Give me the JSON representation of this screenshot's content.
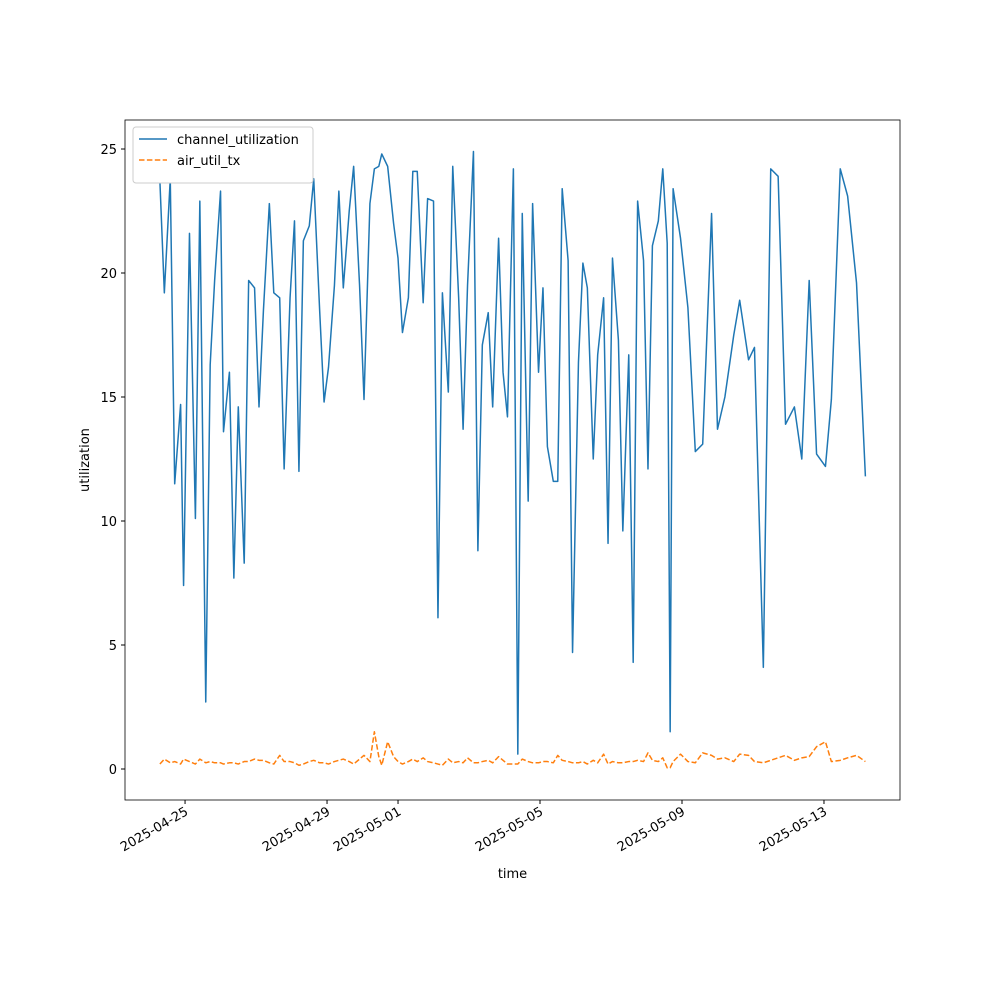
{
  "chart_data": {
    "type": "line",
    "x_label": "time",
    "y_label": "utilization",
    "x": [
      "2025-04-24T07:00",
      "2025-04-24T10:00",
      "2025-04-24T14:00",
      "2025-04-24T17:00",
      "2025-04-24T21:00",
      "2025-04-24T23:00",
      "2025-04-25T03:00",
      "2025-04-25T07:00",
      "2025-04-25T10:00",
      "2025-04-25T14:00",
      "2025-04-25T17:00",
      "2025-04-25T20:00",
      "2025-04-26T00:00",
      "2025-04-26T02:00",
      "2025-04-26T06:00",
      "2025-04-26T09:00",
      "2025-04-26T12:00",
      "2025-04-26T16:00",
      "2025-04-26T19:00",
      "2025-04-26T23:00",
      "2025-04-27T02:00",
      "2025-04-27T05:00",
      "2025-04-27T09:00",
      "2025-04-27T12:00",
      "2025-04-27T16:00",
      "2025-04-27T19:00",
      "2025-04-27T23:00",
      "2025-04-28T02:00",
      "2025-04-28T05:00",
      "2025-04-28T08:00",
      "2025-04-28T12:00",
      "2025-04-28T15:00",
      "2025-04-28T19:00",
      "2025-04-28T22:00",
      "2025-04-29T01:00",
      "2025-04-29T05:00",
      "2025-04-29T08:00",
      "2025-04-29T11:00",
      "2025-04-29T15:00",
      "2025-04-29T18:00",
      "2025-04-29T22:00",
      "2025-04-30T01:00",
      "2025-04-30T05:00",
      "2025-04-30T08:00",
      "2025-04-30T11:00",
      "2025-04-30T13:00",
      "2025-04-30T17:00",
      "2025-04-30T21:00",
      "2025-05-01T00:00",
      "2025-05-01T03:00",
      "2025-05-01T07:00",
      "2025-05-01T10:00",
      "2025-05-01T13:00",
      "2025-05-01T17:00",
      "2025-05-01T20:00",
      "2025-05-02T00:00",
      "2025-05-02T03:00",
      "2025-05-02T06:00",
      "2025-05-02T10:00",
      "2025-05-02T13:00",
      "2025-05-02T17:00",
      "2025-05-02T20:00",
      "2025-05-02T23:00",
      "2025-05-03T03:00",
      "2025-05-03T06:00",
      "2025-05-03T09:00",
      "2025-05-03T13:00",
      "2025-05-03T16:00",
      "2025-05-03T20:00",
      "2025-05-03T23:00",
      "2025-05-04T02:00",
      "2025-05-04T06:00",
      "2025-05-04T09:00",
      "2025-05-04T12:00",
      "2025-05-04T16:00",
      "2025-05-04T19:00",
      "2025-05-04T23:00",
      "2025-05-05T02:00",
      "2025-05-05T05:00",
      "2025-05-05T09:00",
      "2025-05-05T12:00",
      "2025-05-05T15:00",
      "2025-05-05T19:00",
      "2025-05-05T22:00",
      "2025-05-06T02:00",
      "2025-05-06T05:00",
      "2025-05-06T08:00",
      "2025-05-06T12:00",
      "2025-05-06T15:00",
      "2025-05-06T19:00",
      "2025-05-06T22:00",
      "2025-05-07T01:00",
      "2025-05-07T05:00",
      "2025-05-07T08:00",
      "2025-05-07T12:00",
      "2025-05-07T15:00",
      "2025-05-07T18:00",
      "2025-05-07T22:00",
      "2025-05-08T01:00",
      "2025-05-08T04:00",
      "2025-05-08T08:00",
      "2025-05-08T11:00",
      "2025-05-08T14:00",
      "2025-05-08T16:00",
      "2025-05-08T18:00",
      "2025-05-08T23:00",
      "2025-05-09T04:00",
      "2025-05-09T09:00",
      "2025-05-09T14:00",
      "2025-05-09T20:00",
      "2025-05-10T00:00",
      "2025-05-10T05:00",
      "2025-05-10T11:00",
      "2025-05-10T15:00",
      "2025-05-10T21:00",
      "2025-05-11T01:00",
      "2025-05-11T07:00",
      "2025-05-11T12:00",
      "2025-05-11T17:00",
      "2025-05-11T22:00",
      "2025-05-12T04:00",
      "2025-05-12T09:00",
      "2025-05-12T14:00",
      "2025-05-12T19:00",
      "2025-05-13T01:00",
      "2025-05-13T05:00",
      "2025-05-13T11:00",
      "2025-05-13T16:00",
      "2025-05-13T22:00",
      "2025-05-14T04:00"
    ],
    "series": [
      {
        "name": "channel_utilization",
        "color": "#1f77b4",
        "dashed": false,
        "values": [
          23.7,
          19.2,
          23.8,
          11.5,
          14.7,
          7.4,
          21.6,
          10.1,
          22.9,
          2.7,
          16.3,
          19.7,
          23.3,
          13.6,
          16.0,
          7.7,
          14.6,
          8.3,
          19.7,
          19.4,
          14.6,
          18.5,
          22.8,
          19.2,
          19.0,
          12.1,
          19.0,
          22.1,
          12.0,
          21.3,
          21.9,
          23.8,
          18.5,
          14.8,
          16.2,
          19.5,
          23.3,
          19.4,
          22.5,
          24.3,
          19.5,
          14.9,
          22.8,
          24.2,
          24.3,
          24.8,
          24.3,
          22.0,
          20.6,
          17.6,
          19.0,
          24.1,
          24.1,
          18.8,
          23.0,
          22.9,
          6.1,
          19.2,
          15.2,
          24.3,
          19.0,
          13.7,
          19.5,
          24.9,
          8.8,
          17.1,
          18.4,
          14.6,
          21.4,
          16.0,
          14.2,
          24.2,
          0.6,
          22.4,
          10.8,
          22.8,
          16.0,
          19.4,
          13.0,
          11.6,
          11.6,
          23.4,
          20.5,
          4.7,
          16.4,
          20.4,
          19.4,
          12.5,
          16.7,
          19.0,
          9.1,
          20.6,
          17.3,
          9.6,
          16.7,
          4.3,
          22.9,
          20.5,
          12.1,
          21.1,
          22.1,
          24.2,
          21.2,
          1.5,
          23.4,
          21.4,
          18.6,
          12.8,
          13.1,
          22.4,
          13.7,
          15.0,
          17.5,
          18.9,
          16.5,
          17.0,
          4.1,
          24.2,
          23.9,
          13.9,
          14.6,
          12.5,
          19.7,
          12.7,
          12.2,
          14.9,
          24.2,
          23.1,
          19.6,
          11.8
        ]
      },
      {
        "name": "air_util_tx",
        "color": "#ff7f0e",
        "dashed": true,
        "values": [
          0.2,
          0.4,
          0.25,
          0.3,
          0.2,
          0.4,
          0.3,
          0.2,
          0.4,
          0.25,
          0.3,
          0.25,
          0.25,
          0.2,
          0.25,
          0.25,
          0.2,
          0.3,
          0.3,
          0.4,
          0.35,
          0.35,
          0.25,
          0.2,
          0.55,
          0.3,
          0.3,
          0.25,
          0.15,
          0.2,
          0.3,
          0.35,
          0.25,
          0.25,
          0.2,
          0.3,
          0.35,
          0.4,
          0.3,
          0.2,
          0.4,
          0.55,
          0.3,
          1.5,
          0.5,
          0.15,
          1.1,
          0.5,
          0.3,
          0.2,
          0.3,
          0.4,
          0.3,
          0.45,
          0.3,
          0.25,
          0.2,
          0.15,
          0.4,
          0.25,
          0.3,
          0.25,
          0.45,
          0.25,
          0.25,
          0.3,
          0.35,
          0.25,
          0.5,
          0.35,
          0.2,
          0.2,
          0.2,
          0.4,
          0.3,
          0.25,
          0.25,
          0.3,
          0.3,
          0.25,
          0.55,
          0.35,
          0.3,
          0.25,
          0.25,
          0.3,
          0.2,
          0.35,
          0.25,
          0.6,
          0.2,
          0.3,
          0.25,
          0.25,
          0.3,
          0.3,
          0.35,
          0.3,
          0.65,
          0.35,
          0.3,
          0.45,
          0.05,
          0.05,
          0.3,
          0.6,
          0.3,
          0.25,
          0.65,
          0.55,
          0.4,
          0.45,
          0.3,
          0.6,
          0.55,
          0.3,
          0.25,
          0.35,
          0.45,
          0.55,
          0.35,
          0.45,
          0.5,
          0.9,
          1.1,
          0.3,
          0.35,
          0.45,
          0.55,
          0.3
        ]
      }
    ],
    "xlim": [
      "2025-04-23T07:24",
      "2025-05-15T03:24"
    ],
    "xticks": [
      "2025-04-25",
      "2025-04-29",
      "2025-05-01",
      "2025-05-05",
      "2025-05-09",
      "2025-05-13"
    ],
    "ylim": [
      -1.25,
      26.17
    ],
    "yticks": [
      0,
      5,
      10,
      15,
      20,
      25
    ],
    "legend": "upper left",
    "grid": false
  }
}
